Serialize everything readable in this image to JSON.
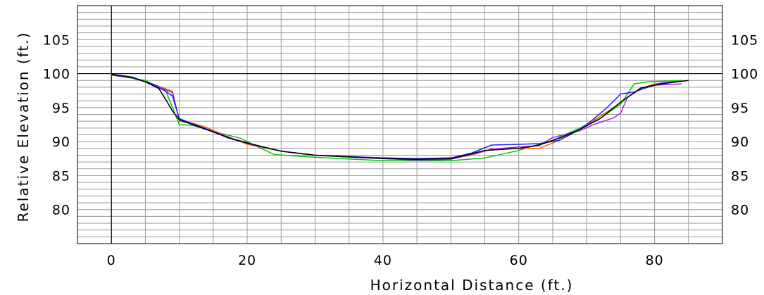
{
  "chart_data": {
    "type": "line",
    "title": "",
    "xlabel": "Horizontal Distance (ft.)",
    "ylabel": "Relative Elevation (ft.)",
    "xlim": [
      -5,
      90
    ],
    "ylim": [
      75,
      110
    ],
    "x_ticks": [
      "0",
      "20",
      "40",
      "60",
      "80"
    ],
    "y_ticks": [
      "80",
      "85",
      "90",
      "95",
      "100",
      "105"
    ],
    "grid": true,
    "reference_lines": {
      "x": 0,
      "y": 100
    },
    "legend": "none",
    "series": [
      {
        "color": "#00c800",
        "points": [
          [
            0,
            99.8
          ],
          [
            2,
            99.5
          ],
          [
            5,
            99.0
          ],
          [
            8,
            97.5
          ],
          [
            10,
            92.5
          ],
          [
            12,
            92.4
          ],
          [
            15,
            91.5
          ],
          [
            19,
            90.5
          ],
          [
            21,
            89.5
          ],
          [
            24,
            88.1
          ],
          [
            30,
            87.7
          ],
          [
            40,
            87.2
          ],
          [
            50,
            87.2
          ],
          [
            55,
            87.6
          ],
          [
            60,
            88.7
          ],
          [
            65,
            90.2
          ],
          [
            69,
            92.0
          ],
          [
            72,
            93.4
          ],
          [
            75,
            95.5
          ],
          [
            77,
            98.5
          ],
          [
            79,
            98.8
          ],
          [
            84,
            99.0
          ]
        ]
      },
      {
        "color": "#ff6400",
        "points": [
          [
            0,
            99.8
          ],
          [
            3,
            99.4
          ],
          [
            6,
            98.5
          ],
          [
            9,
            97.4
          ],
          [
            10,
            93.0
          ],
          [
            12,
            92.7
          ],
          [
            14,
            92.1
          ],
          [
            17,
            90.8
          ],
          [
            20,
            89.6
          ],
          [
            25,
            88.6
          ],
          [
            30,
            88.0
          ],
          [
            40,
            87.6
          ],
          [
            45,
            87.4
          ],
          [
            50,
            87.5
          ],
          [
            53,
            88.0
          ],
          [
            56,
            88.9
          ],
          [
            60,
            89.0
          ],
          [
            63,
            89.0
          ],
          [
            66,
            90.2
          ],
          [
            69,
            91.8
          ],
          [
            71,
            93.1
          ],
          [
            74,
            95.0
          ],
          [
            76,
            96.5
          ],
          [
            78,
            97.8
          ],
          [
            80,
            98.5
          ],
          [
            84,
            98.9
          ]
        ]
      },
      {
        "color": "#a020f0",
        "points": [
          [
            0,
            99.8
          ],
          [
            3,
            99.4
          ],
          [
            6,
            98.5
          ],
          [
            9,
            97.2
          ],
          [
            10,
            93.2
          ],
          [
            12,
            92.6
          ],
          [
            15,
            91.5
          ],
          [
            18,
            90.4
          ],
          [
            22,
            89.3
          ],
          [
            25,
            88.6
          ],
          [
            30,
            88.0
          ],
          [
            40,
            87.5
          ],
          [
            45,
            87.3
          ],
          [
            50,
            87.4
          ],
          [
            53,
            88.1
          ],
          [
            56,
            88.9
          ],
          [
            60,
            89.2
          ],
          [
            63,
            89.4
          ],
          [
            65,
            90.6
          ],
          [
            67,
            91.1
          ],
          [
            69,
            91.6
          ],
          [
            71,
            92.5
          ],
          [
            74,
            93.5
          ],
          [
            75,
            94.2
          ],
          [
            76,
            96.5
          ],
          [
            78,
            97.9
          ],
          [
            80,
            98.3
          ],
          [
            84,
            98.5
          ]
        ]
      },
      {
        "color": "#1e1eff",
        "points": [
          [
            0,
            99.8
          ],
          [
            3,
            99.4
          ],
          [
            6,
            98.5
          ],
          [
            8,
            97.4
          ],
          [
            9,
            96.7
          ],
          [
            10,
            93.4
          ],
          [
            12,
            92.6
          ],
          [
            15,
            91.5
          ],
          [
            17,
            90.6
          ],
          [
            21,
            89.5
          ],
          [
            25,
            88.6
          ],
          [
            30,
            88.0
          ],
          [
            40,
            87.6
          ],
          [
            45,
            87.5
          ],
          [
            50,
            87.6
          ],
          [
            53,
            88.3
          ],
          [
            56,
            89.5
          ],
          [
            60,
            89.6
          ],
          [
            63,
            89.7
          ],
          [
            66,
            90.2
          ],
          [
            69,
            91.8
          ],
          [
            71,
            93.3
          ],
          [
            73,
            95.0
          ],
          [
            75,
            97.0
          ],
          [
            77,
            97.3
          ],
          [
            79,
            98.0
          ],
          [
            81,
            98.6
          ],
          [
            84,
            98.9
          ]
        ]
      },
      {
        "color": "#000000",
        "points": [
          [
            0,
            99.9
          ],
          [
            3,
            99.5
          ],
          [
            5,
            98.8
          ],
          [
            7,
            97.8
          ],
          [
            8,
            96.2
          ],
          [
            9,
            94.5
          ],
          [
            10,
            93.2
          ],
          [
            12,
            92.5
          ],
          [
            15,
            91.4
          ],
          [
            18,
            90.3
          ],
          [
            22,
            89.3
          ],
          [
            25,
            88.6
          ],
          [
            30,
            88.0
          ],
          [
            40,
            87.5
          ],
          [
            45,
            87.4
          ],
          [
            50,
            87.5
          ],
          [
            55,
            88.7
          ],
          [
            60,
            89.0
          ],
          [
            63,
            89.5
          ],
          [
            66,
            90.5
          ],
          [
            69,
            91.8
          ],
          [
            72,
            93.4
          ],
          [
            75,
            95.8
          ],
          [
            78,
            97.9
          ],
          [
            81,
            98.5
          ],
          [
            85,
            99.0
          ]
        ]
      }
    ]
  }
}
